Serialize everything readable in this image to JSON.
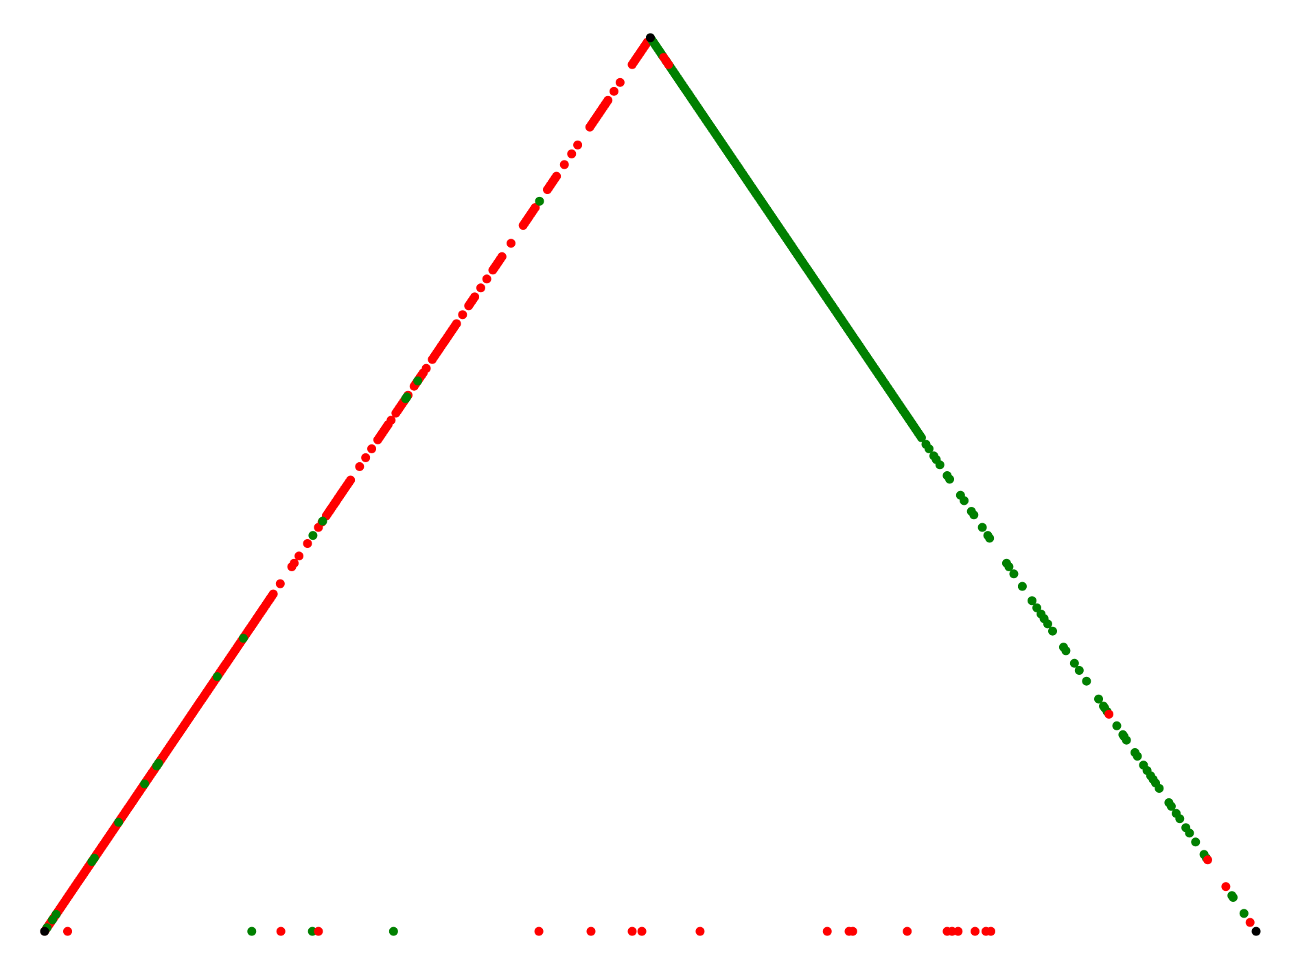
{
  "chart_data": {
    "type": "scatter",
    "title": "",
    "xlabel": "",
    "ylabel": "",
    "axes_visible": false,
    "grid": false,
    "legend": "none",
    "colors": {
      "red": "#ff0000",
      "green": "#008000",
      "black": "#000000"
    },
    "xlim": [
      0,
      1
    ],
    "ylim": [
      0,
      1
    ],
    "vertices": [
      {
        "x": 0.0,
        "y": 0.0,
        "color": "black"
      },
      {
        "x": 0.5,
        "y": 1.0,
        "color": "black"
      },
      {
        "x": 1.0,
        "y": 0.0,
        "color": "black"
      }
    ],
    "left_edge": {
      "dense_red_ranges": [
        [
          0.0,
          0.38
        ],
        [
          0.465,
          0.505
        ],
        [
          0.55,
          0.565
        ],
        [
          0.58,
          0.6
        ],
        [
          0.61,
          0.625
        ],
        [
          0.64,
          0.66
        ],
        [
          0.66,
          0.68
        ],
        [
          0.7,
          0.71
        ],
        [
          0.74,
          0.755
        ],
        [
          0.79,
          0.81
        ],
        [
          0.83,
          0.845
        ],
        [
          0.9,
          0.93
        ],
        [
          0.97,
          0.995
        ]
      ],
      "green_points": [
        0.004,
        0.013,
        0.019,
        0.078,
        0.082,
        0.122,
        0.165,
        0.185,
        0.188,
        0.285,
        0.328,
        0.443,
        0.459,
        0.596,
        0.598,
        0.616,
        0.817
      ],
      "red_points": [
        0.36,
        0.372,
        0.389,
        0.408,
        0.412,
        0.42,
        0.434,
        0.452,
        0.458,
        0.472,
        0.48,
        0.49,
        0.52,
        0.53,
        0.54,
        0.567,
        0.572,
        0.63,
        0.69,
        0.72,
        0.73,
        0.77,
        0.858,
        0.87,
        0.88,
        0.94,
        0.95
      ]
    },
    "right_edge": {
      "dense_green_ranges": [
        [
          0.0,
          0.02
        ],
        [
          0.025,
          0.45
        ]
      ],
      "red_points": [
        0.022,
        0.03,
        0.026
      ],
      "green_points": [
        0.455,
        0.46,
        0.468,
        0.472,
        0.478,
        0.49,
        0.494,
        0.512,
        0.518,
        0.53,
        0.534,
        0.548,
        0.557,
        0.56,
        0.588,
        0.592,
        0.6,
        0.614,
        0.63,
        0.638,
        0.645,
        0.65,
        0.656,
        0.664,
        0.682,
        0.686,
        0.7,
        0.708,
        0.72,
        0.74,
        0.748,
        0.75,
        0.754,
        0.77,
        0.78,
        0.782,
        0.786,
        0.8,
        0.804,
        0.814,
        0.82,
        0.826,
        0.83,
        0.834,
        0.84,
        0.856,
        0.86,
        0.868,
        0.874,
        0.884,
        0.89,
        0.9,
        0.914,
        0.918,
        0.96,
        0.962,
        0.98
      ],
      "red_points_2": [
        0.757,
        0.92,
        0.95,
        0.99
      ]
    },
    "bottom_points": [
      {
        "x": 0.019,
        "color": "red"
      },
      {
        "x": 0.171,
        "color": "green"
      },
      {
        "x": 0.195,
        "color": "red"
      },
      {
        "x": 0.221,
        "color": "green"
      },
      {
        "x": 0.226,
        "color": "red"
      },
      {
        "x": 0.288,
        "color": "green"
      },
      {
        "x": 0.408,
        "color": "red"
      },
      {
        "x": 0.451,
        "color": "red"
      },
      {
        "x": 0.485,
        "color": "red"
      },
      {
        "x": 0.493,
        "color": "red"
      },
      {
        "x": 0.541,
        "color": "red"
      },
      {
        "x": 0.646,
        "color": "red"
      },
      {
        "x": 0.664,
        "color": "red"
      },
      {
        "x": 0.667,
        "color": "red"
      },
      {
        "x": 0.712,
        "color": "red"
      },
      {
        "x": 0.745,
        "color": "red"
      },
      {
        "x": 0.749,
        "color": "red"
      },
      {
        "x": 0.754,
        "color": "red"
      },
      {
        "x": 0.768,
        "color": "red"
      },
      {
        "x": 0.777,
        "color": "red"
      },
      {
        "x": 0.781,
        "color": "red"
      }
    ]
  }
}
